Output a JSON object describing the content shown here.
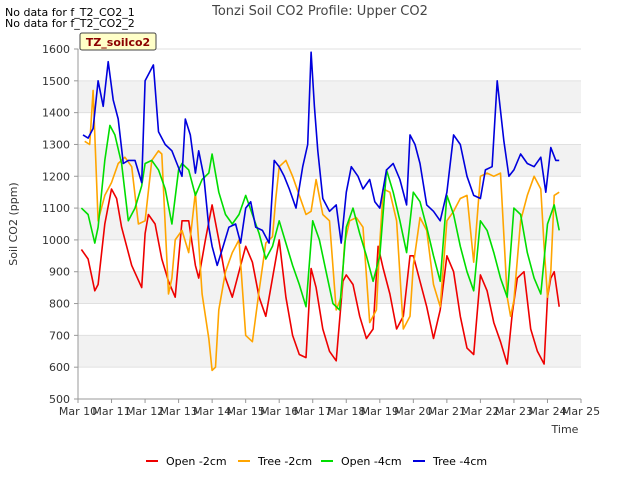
{
  "notes": [
    "No data for f_T2_CO2_1",
    "No data for f_T2_CO2_2"
  ],
  "badge": "TZ_soilco2",
  "chart_data": {
    "type": "line",
    "title": "Tonzi Soil CO2 Profile: Upper CO2",
    "xlabel": "Time",
    "ylabel": "Soil CO2 (ppm)",
    "xlim": [
      10,
      25
    ],
    "ylim": [
      500,
      1600
    ],
    "x_ticks": [
      10,
      11,
      12,
      13,
      14,
      15,
      16,
      17,
      18,
      19,
      20,
      21,
      22,
      23,
      24,
      25
    ],
    "x_tick_labels": [
      "Mar 10",
      "Mar 11",
      "Mar 12",
      "Mar 13",
      "Mar 14",
      "Mar 15",
      "Mar 16",
      "Mar 17",
      "Mar 18",
      "Mar 19",
      "Mar 20",
      "Mar 21",
      "Mar 22",
      "Mar 23",
      "Mar 24",
      "Mar 25"
    ],
    "y_ticks": [
      500,
      600,
      700,
      800,
      900,
      1000,
      1100,
      1200,
      1300,
      1400,
      1500,
      1600
    ],
    "grid": "horizontal bands",
    "legend_position": "bottom",
    "series": [
      {
        "name": "Open -2cm",
        "color": "#ee0000",
        "x": [
          10.1,
          10.3,
          10.5,
          10.6,
          10.8,
          11.0,
          11.15,
          11.3,
          11.6,
          11.9,
          12.0,
          12.1,
          12.3,
          12.5,
          12.7,
          12.9,
          13.1,
          13.3,
          13.5,
          13.6,
          13.8,
          14.0,
          14.2,
          14.4,
          14.6,
          14.8,
          15.0,
          15.2,
          15.4,
          15.6,
          15.8,
          16.0,
          16.2,
          16.4,
          16.6,
          16.8,
          16.95,
          17.1,
          17.3,
          17.5,
          17.7,
          17.9,
          18.0,
          18.2,
          18.4,
          18.6,
          18.8,
          18.95,
          19.1,
          19.3,
          19.5,
          19.7,
          19.9,
          20.0,
          20.2,
          20.4,
          20.6,
          20.8,
          21.0,
          21.2,
          21.4,
          21.6,
          21.8,
          22.0,
          22.2,
          22.4,
          22.6,
          22.8,
          22.95,
          23.1,
          23.3,
          23.5,
          23.7,
          23.9,
          24.0,
          24.1,
          24.2,
          24.35
        ],
        "y": [
          970,
          940,
          840,
          860,
          1050,
          1160,
          1130,
          1040,
          920,
          850,
          1020,
          1080,
          1050,
          940,
          870,
          820,
          1060,
          1060,
          920,
          880,
          1000,
          1110,
          1000,
          880,
          820,
          900,
          980,
          930,
          820,
          760,
          880,
          1000,
          820,
          700,
          640,
          630,
          910,
          850,
          720,
          650,
          620,
          870,
          890,
          860,
          760,
          690,
          720,
          980,
          910,
          830,
          720,
          760,
          950,
          950,
          870,
          790,
          690,
          780,
          950,
          900,
          760,
          660,
          640,
          890,
          840,
          740,
          680,
          610,
          770,
          880,
          900,
          720,
          650,
          610,
          820,
          880,
          900,
          790
        ]
      },
      {
        "name": "Tree -2cm",
        "color": "#ffa500",
        "x": [
          10.2,
          10.35,
          10.45,
          10.6,
          10.8,
          11.0,
          11.2,
          11.4,
          11.6,
          11.8,
          12.0,
          12.2,
          12.4,
          12.5,
          12.7,
          12.8,
          12.9,
          13.1,
          13.3,
          13.5,
          13.7,
          13.9,
          14.0,
          14.1,
          14.2,
          14.4,
          14.6,
          14.8,
          15.0,
          15.2,
          15.4,
          15.6,
          15.8,
          15.9,
          16.0,
          16.2,
          16.4,
          16.6,
          16.8,
          16.95,
          17.1,
          17.3,
          17.5,
          17.7,
          17.85,
          17.95,
          18.1,
          18.3,
          18.5,
          18.7,
          18.9,
          19.0,
          19.1,
          19.3,
          19.5,
          19.7,
          19.9,
          20.0,
          20.2,
          20.4,
          20.6,
          20.8,
          21.0,
          21.2,
          21.4,
          21.6,
          21.8,
          22.0,
          22.2,
          22.4,
          22.6,
          22.8,
          22.9,
          23.0,
          23.2,
          23.4,
          23.6,
          23.8,
          23.9,
          24.0,
          24.1,
          24.2,
          24.35
        ],
        "y": [
          1310,
          1300,
          1470,
          1060,
          1140,
          1180,
          1240,
          1260,
          1230,
          1050,
          1060,
          1250,
          1280,
          1270,
          830,
          880,
          1000,
          1030,
          960,
          1150,
          830,
          690,
          590,
          600,
          780,
          900,
          960,
          1000,
          700,
          680,
          840,
          990,
          1010,
          1130,
          1230,
          1250,
          1200,
          1140,
          1080,
          1090,
          1190,
          1080,
          1060,
          780,
          820,
          990,
          1060,
          1070,
          1040,
          740,
          780,
          990,
          1160,
          1150,
          1060,
          720,
          760,
          920,
          1070,
          1030,
          860,
          790,
          1060,
          1090,
          1130,
          1140,
          930,
          1200,
          1210,
          1200,
          1210,
          820,
          760,
          810,
          1060,
          1140,
          1200,
          1160,
          980,
          820,
          900,
          1140,
          1150
        ]
      },
      {
        "name": "Open -4cm",
        "color": "#00dd00",
        "x": [
          10.1,
          10.3,
          10.5,
          10.6,
          10.8,
          10.95,
          11.1,
          11.3,
          11.5,
          11.7,
          11.9,
          12.0,
          12.2,
          12.4,
          12.6,
          12.8,
          13.0,
          13.1,
          13.3,
          13.5,
          13.7,
          13.9,
          14.0,
          14.2,
          14.4,
          14.6,
          14.8,
          15.0,
          15.2,
          15.4,
          15.6,
          15.8,
          16.0,
          16.2,
          16.4,
          16.6,
          16.8,
          17.0,
          17.2,
          17.4,
          17.6,
          17.8,
          18.0,
          18.2,
          18.4,
          18.6,
          18.8,
          19.0,
          19.2,
          19.4,
          19.6,
          19.8,
          20.0,
          20.2,
          20.4,
          20.6,
          20.8,
          21.0,
          21.2,
          21.4,
          21.6,
          21.8,
          22.0,
          22.2,
          22.4,
          22.6,
          22.8,
          23.0,
          23.2,
          23.4,
          23.6,
          23.8,
          24.0,
          24.2,
          24.35
        ],
        "y": [
          1100,
          1080,
          990,
          1040,
          1250,
          1360,
          1330,
          1240,
          1060,
          1100,
          1170,
          1240,
          1250,
          1220,
          1160,
          1050,
          1220,
          1240,
          1220,
          1140,
          1190,
          1210,
          1270,
          1150,
          1080,
          1050,
          1080,
          1140,
          1080,
          1020,
          940,
          980,
          1060,
          990,
          920,
          860,
          790,
          1060,
          1000,
          900,
          800,
          780,
          1040,
          1100,
          1020,
          950,
          870,
          950,
          1220,
          1150,
          1060,
          960,
          1150,
          1120,
          1040,
          950,
          870,
          1140,
          1080,
          980,
          900,
          840,
          1060,
          1030,
          960,
          880,
          820,
          1100,
          1080,
          960,
          880,
          830,
          1050,
          1110,
          1030
        ]
      },
      {
        "name": "Tree -4cm",
        "color": "#0000dd",
        "x": [
          10.15,
          10.3,
          10.45,
          10.6,
          10.75,
          10.9,
          11.05,
          11.2,
          11.35,
          11.5,
          11.7,
          11.9,
          12.0,
          12.1,
          12.25,
          12.4,
          12.6,
          12.8,
          12.95,
          13.1,
          13.2,
          13.35,
          13.5,
          13.6,
          13.75,
          13.9,
          14.0,
          14.15,
          14.3,
          14.5,
          14.7,
          14.85,
          15.0,
          15.15,
          15.3,
          15.5,
          15.7,
          15.85,
          16.0,
          16.15,
          16.3,
          16.5,
          16.7,
          16.85,
          16.95,
          17.05,
          17.15,
          17.3,
          17.5,
          17.7,
          17.85,
          18.0,
          18.15,
          18.35,
          18.5,
          18.7,
          18.85,
          19.0,
          19.2,
          19.4,
          19.6,
          19.8,
          19.9,
          20.05,
          20.2,
          20.4,
          20.6,
          20.8,
          21.0,
          21.2,
          21.4,
          21.6,
          21.8,
          22.0,
          22.15,
          22.35,
          22.5,
          22.7,
          22.85,
          23.0,
          23.2,
          23.4,
          23.6,
          23.8,
          23.95,
          24.1,
          24.25,
          24.35
        ],
        "y": [
          1330,
          1320,
          1350,
          1500,
          1420,
          1560,
          1440,
          1380,
          1240,
          1250,
          1250,
          1180,
          1500,
          1520,
          1550,
          1340,
          1300,
          1280,
          1240,
          1200,
          1380,
          1330,
          1210,
          1280,
          1200,
          1040,
          980,
          920,
          970,
          1040,
          1050,
          990,
          1100,
          1120,
          1040,
          1030,
          990,
          1250,
          1230,
          1200,
          1160,
          1100,
          1230,
          1300,
          1590,
          1420,
          1280,
          1130,
          1090,
          1110,
          990,
          1150,
          1230,
          1200,
          1160,
          1190,
          1120,
          1100,
          1220,
          1240,
          1190,
          1110,
          1330,
          1300,
          1240,
          1110,
          1090,
          1060,
          1150,
          1330,
          1300,
          1200,
          1140,
          1130,
          1220,
          1230,
          1500,
          1310,
          1200,
          1220,
          1270,
          1240,
          1230,
          1260,
          1150,
          1290,
          1250,
          1250
        ]
      }
    ]
  }
}
